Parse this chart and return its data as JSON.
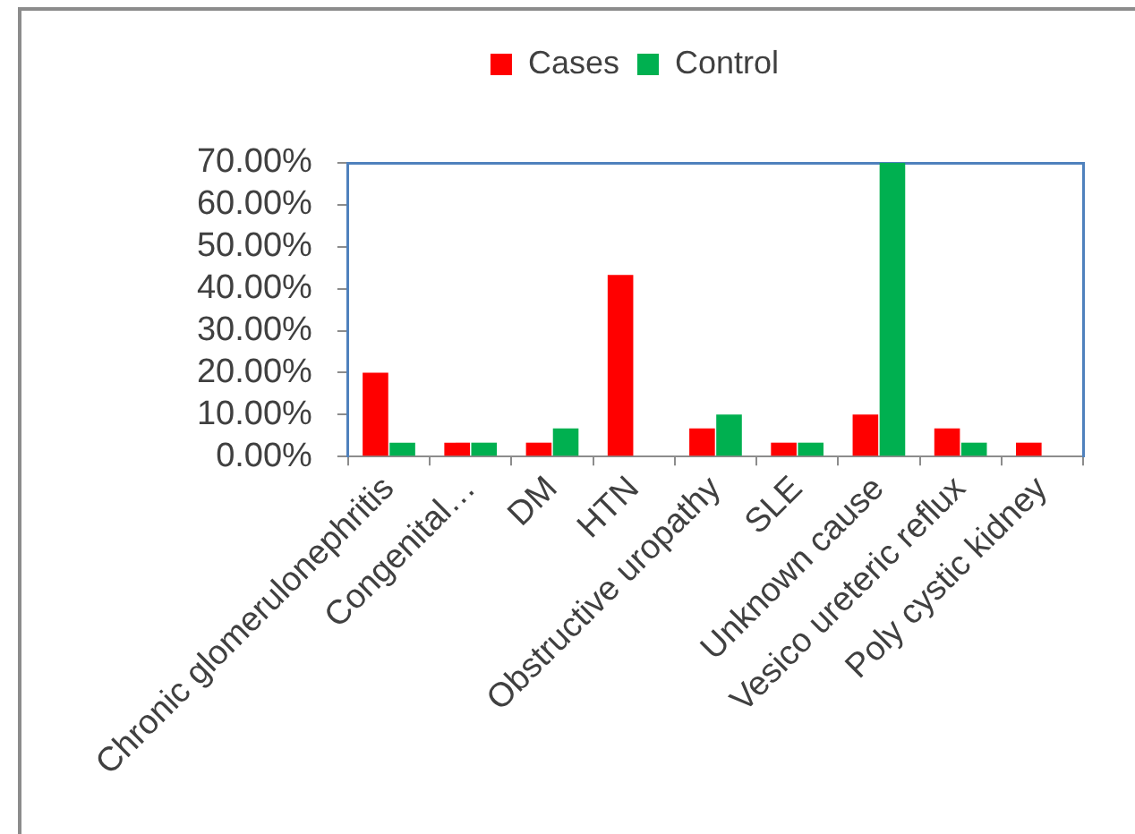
{
  "chart_data": {
    "type": "bar",
    "categories": [
      "Chronic glomerulonephritis",
      "Congenital…",
      "DM",
      "HTN",
      "Obstructive uropathy",
      "SLE",
      "Unknown cause",
      "Vesico ureteric reflux",
      "Poly cystic kidney"
    ],
    "series": [
      {
        "name": "Cases",
        "color": "#ff0000",
        "values": [
          20,
          3.3,
          3.3,
          43.3,
          6.7,
          3.3,
          10,
          6.7,
          3.3
        ]
      },
      {
        "name": "Control",
        "color": "#00b050",
        "values": [
          3.3,
          3.3,
          6.7,
          0,
          10,
          3.3,
          70,
          3.3,
          0
        ]
      }
    ],
    "ylim": [
      0,
      70
    ],
    "yticks": [
      {
        "value": 0,
        "label": "0.00%"
      },
      {
        "value": 10,
        "label": "10.00%"
      },
      {
        "value": 20,
        "label": "20.00%"
      },
      {
        "value": 30,
        "label": "30.00%"
      },
      {
        "value": 40,
        "label": "40.00%"
      },
      {
        "value": 50,
        "label": "50.00%"
      },
      {
        "value": 60,
        "label": "60.00%"
      },
      {
        "value": 70,
        "label": "70.00%"
      }
    ],
    "grid": false,
    "legend": "top"
  }
}
